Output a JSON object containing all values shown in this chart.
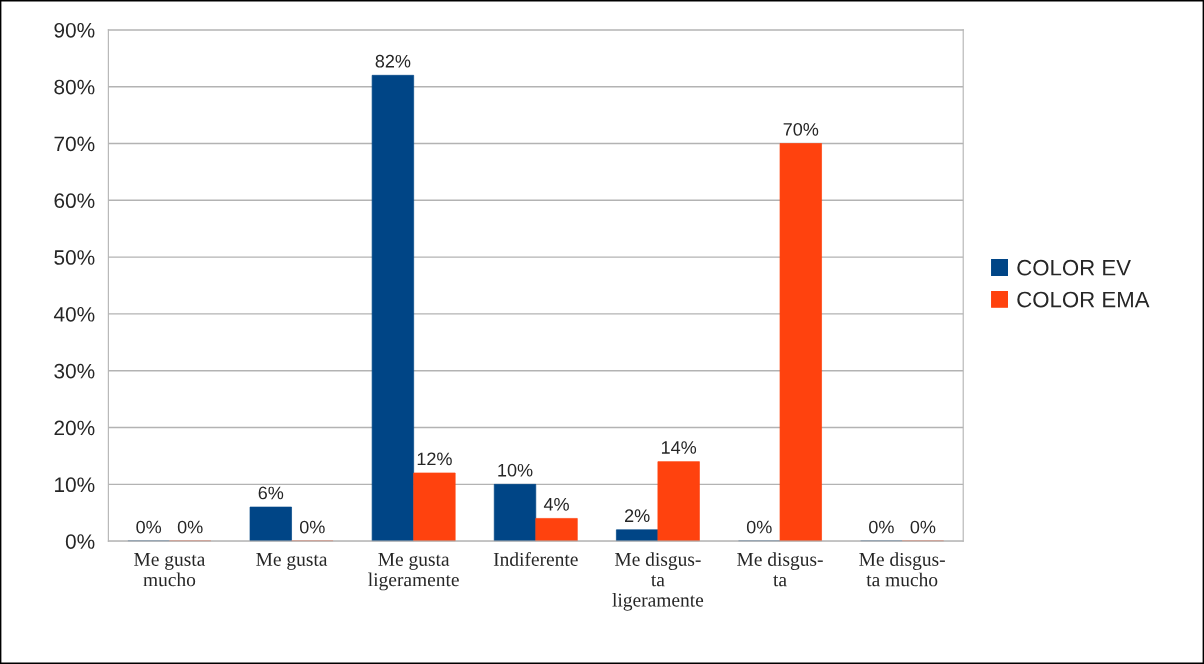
{
  "chart_data": {
    "type": "bar",
    "categories": [
      "Me gusta\nmucho",
      "Me gusta",
      "Me gusta\nligeramente",
      "Indiferente",
      "Me disgus-\nta\nligeramente",
      "Me disgus-\nta",
      "Me disgus-\nta mucho"
    ],
    "series": [
      {
        "name": "COLOR EV",
        "color": "#004586",
        "values": [
          0,
          6,
          82,
          10,
          2,
          0,
          0
        ],
        "value_labels": [
          "0%",
          "6%",
          "82%",
          "10%",
          "2%",
          "0%",
          "0%"
        ]
      },
      {
        "name": "COLOR EMA",
        "color": "#ff420e",
        "values": [
          0,
          0,
          12,
          4,
          14,
          70,
          0
        ],
        "value_labels": [
          "0%",
          "0%",
          "12%",
          "4%",
          "14%",
          "70%",
          "0%"
        ]
      }
    ],
    "ylim": [
      0,
      90
    ],
    "yticks": [
      {
        "value": 0,
        "label": "0%"
      },
      {
        "value": 10,
        "label": "10%"
      },
      {
        "value": 20,
        "label": "20%"
      },
      {
        "value": 30,
        "label": "30%"
      },
      {
        "value": 40,
        "label": "40%"
      },
      {
        "value": 50,
        "label": "50%"
      },
      {
        "value": 60,
        "label": "60%"
      },
      {
        "value": 70,
        "label": "70%"
      },
      {
        "value": 80,
        "label": "80%"
      },
      {
        "value": 90,
        "label": "90%"
      }
    ],
    "grid": "y",
    "legend": "right"
  }
}
